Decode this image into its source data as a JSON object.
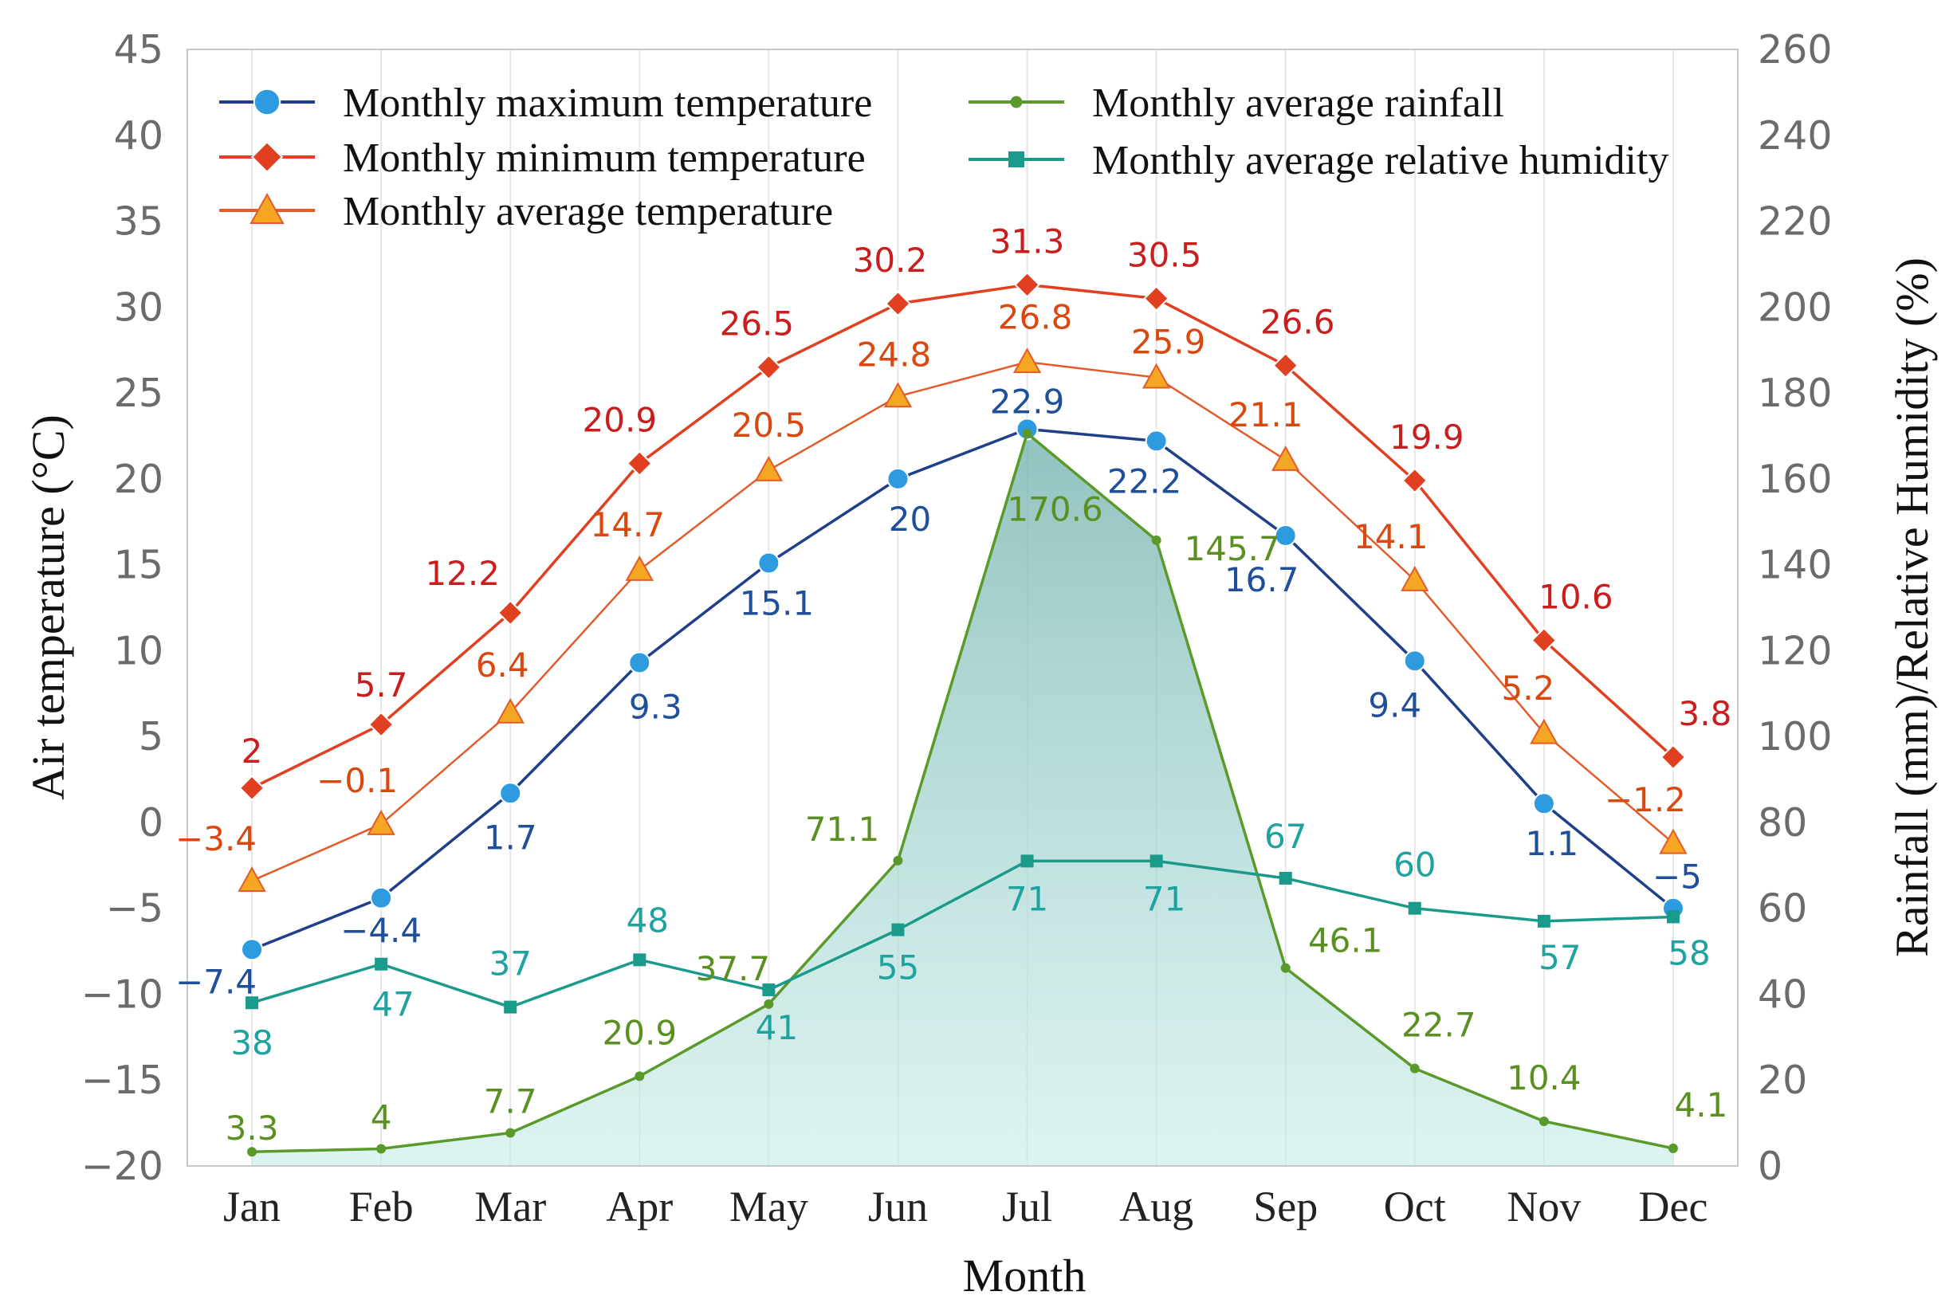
{
  "chart_data": {
    "type": "line",
    "xlabel": "Month",
    "ylabel_left": "Air temperature (°C)",
    "ylabel_right": "Rainfall (mm)/Relative Humidity (%)",
    "categories": [
      "Jan",
      "Feb",
      "Mar",
      "Apr",
      "May",
      "Jun",
      "Jul",
      "Aug",
      "Sep",
      "Oct",
      "Nov",
      "Dec"
    ],
    "ylim_left": [
      -20,
      45
    ],
    "ylim_right": [
      0,
      260
    ],
    "yticks_left": [
      "45",
      "40",
      "35",
      "30",
      "25",
      "20",
      "15",
      "10",
      "5",
      "0",
      "−5",
      "−10",
      "−15",
      "−20"
    ],
    "yticks_right": [
      "260",
      "240",
      "220",
      "200",
      "180",
      "160",
      "140",
      "120",
      "100",
      "80",
      "60",
      "40",
      "20",
      "0"
    ],
    "legend_position": "top-left",
    "grid": "vertical",
    "series": [
      {
        "name": "Monthly maximum temperature",
        "axis": "left",
        "marker": "circle",
        "line_color": "#1f3f8a",
        "marker_color": "#2e9be0",
        "label_color": "#1f4f9a",
        "values": [
          -7.4,
          -4.4,
          1.7,
          9.3,
          15.1,
          20,
          22.9,
          22.2,
          16.7,
          9.4,
          1.1,
          -5
        ],
        "labels": [
          "−7.4",
          "−4.4",
          "1.7",
          "9.3",
          "15.1",
          "20",
          "22.9",
          "22.2",
          "16.7",
          "9.4",
          "1.1",
          "−5"
        ]
      },
      {
        "name": "Monthly minimum temperature",
        "axis": "left",
        "marker": "diamond",
        "line_color": "#e0401f",
        "marker_color": "#e0401f",
        "label_color": "#c81e1e",
        "values": [
          2,
          5.7,
          12.2,
          20.9,
          26.5,
          30.2,
          31.3,
          30.5,
          26.6,
          19.9,
          10.6,
          3.8
        ],
        "labels": [
          "2",
          "5.7",
          "12.2",
          "20.9",
          "26.5",
          "30.2",
          "31.3",
          "30.5",
          "26.6",
          "19.9",
          "10.6",
          "3.8"
        ]
      },
      {
        "name": "Monthly average temperature",
        "axis": "left",
        "marker": "triangle",
        "line_color": "#e35b2a",
        "marker_color": "#f5a623",
        "label_color": "#d9480f",
        "values": [
          -3.4,
          -0.1,
          6.4,
          14.7,
          20.5,
          24.8,
          26.8,
          25.9,
          21.1,
          14.1,
          5.2,
          -1.2
        ],
        "labels": [
          "−3.4",
          "−0.1",
          "6.4",
          "14.7",
          "20.5",
          "24.8",
          "26.8",
          "25.9",
          "21.1",
          "14.1",
          "5.2",
          "−1.2"
        ]
      },
      {
        "name": "Monthly average rainfall",
        "axis": "right",
        "marker": "dot",
        "line_color": "#5a9a2a",
        "marker_color": "#5a9a2a",
        "label_color": "#5a8f22",
        "fill": "#9fd6d0",
        "values": [
          3.3,
          4,
          7.7,
          20.9,
          37.7,
          71.1,
          170.6,
          145.7,
          46.1,
          22.7,
          10.4,
          4.1
        ],
        "labels": [
          "3.3",
          "4",
          "7.7",
          "20.9",
          "37.7",
          "71.1",
          "170.6",
          "145.7",
          "46.1",
          "22.7",
          "10.4",
          "4.1"
        ]
      },
      {
        "name": "Monthly average relative humidity",
        "axis": "right",
        "marker": "square",
        "line_color": "#1a9a8a",
        "marker_color": "#1a9a8a",
        "label_color": "#1fa3a0",
        "values": [
          38,
          47,
          37,
          48,
          41,
          55,
          71,
          71,
          67,
          60,
          57,
          58
        ],
        "labels": [
          "38",
          "47",
          "37",
          "48",
          "41",
          "55",
          "71",
          "71",
          "67",
          "60",
          "57",
          "58"
        ]
      }
    ]
  }
}
